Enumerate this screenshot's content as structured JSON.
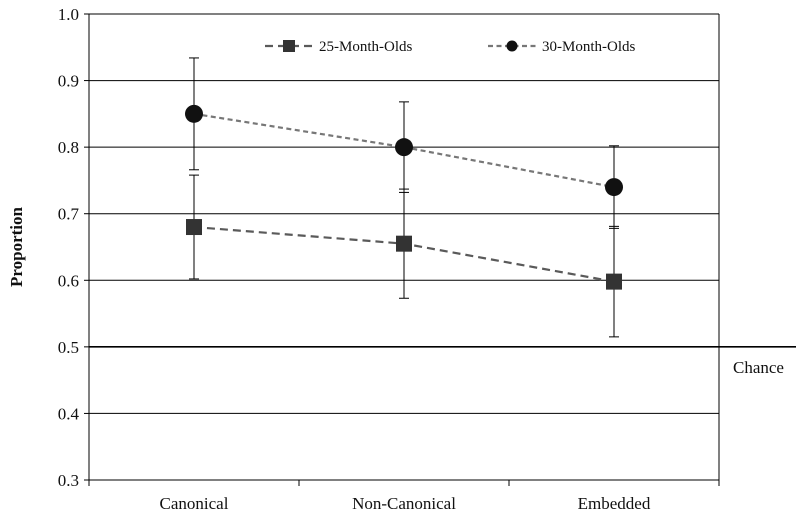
{
  "chart_data": {
    "type": "line",
    "title": "",
    "xlabel": "",
    "ylabel": "Proportion",
    "ylim": [
      0.3,
      1.0
    ],
    "yticks": [
      "0.3",
      "0.4",
      "0.5",
      "0.6",
      "0.7",
      "0.8",
      "0.9",
      "1.0"
    ],
    "categories": [
      "Canonical",
      "Non-Canonical",
      "Embedded"
    ],
    "grid": true,
    "legend_position": "top",
    "reference_line": {
      "label": "Chance",
      "value": 0.5
    },
    "series": [
      {
        "name": "25-Month-Olds",
        "marker": "square",
        "color": "#5a5a5a",
        "marker_color": "#333333",
        "values": [
          0.68,
          0.655,
          0.598
        ],
        "error_bars": [
          0.078,
          0.082,
          0.083
        ]
      },
      {
        "name": "30-Month-Olds",
        "marker": "circle",
        "color": "#777777",
        "marker_color": "#111111",
        "values": [
          0.85,
          0.8,
          0.74
        ],
        "error_bars": [
          0.084,
          0.068,
          0.062
        ]
      }
    ]
  }
}
